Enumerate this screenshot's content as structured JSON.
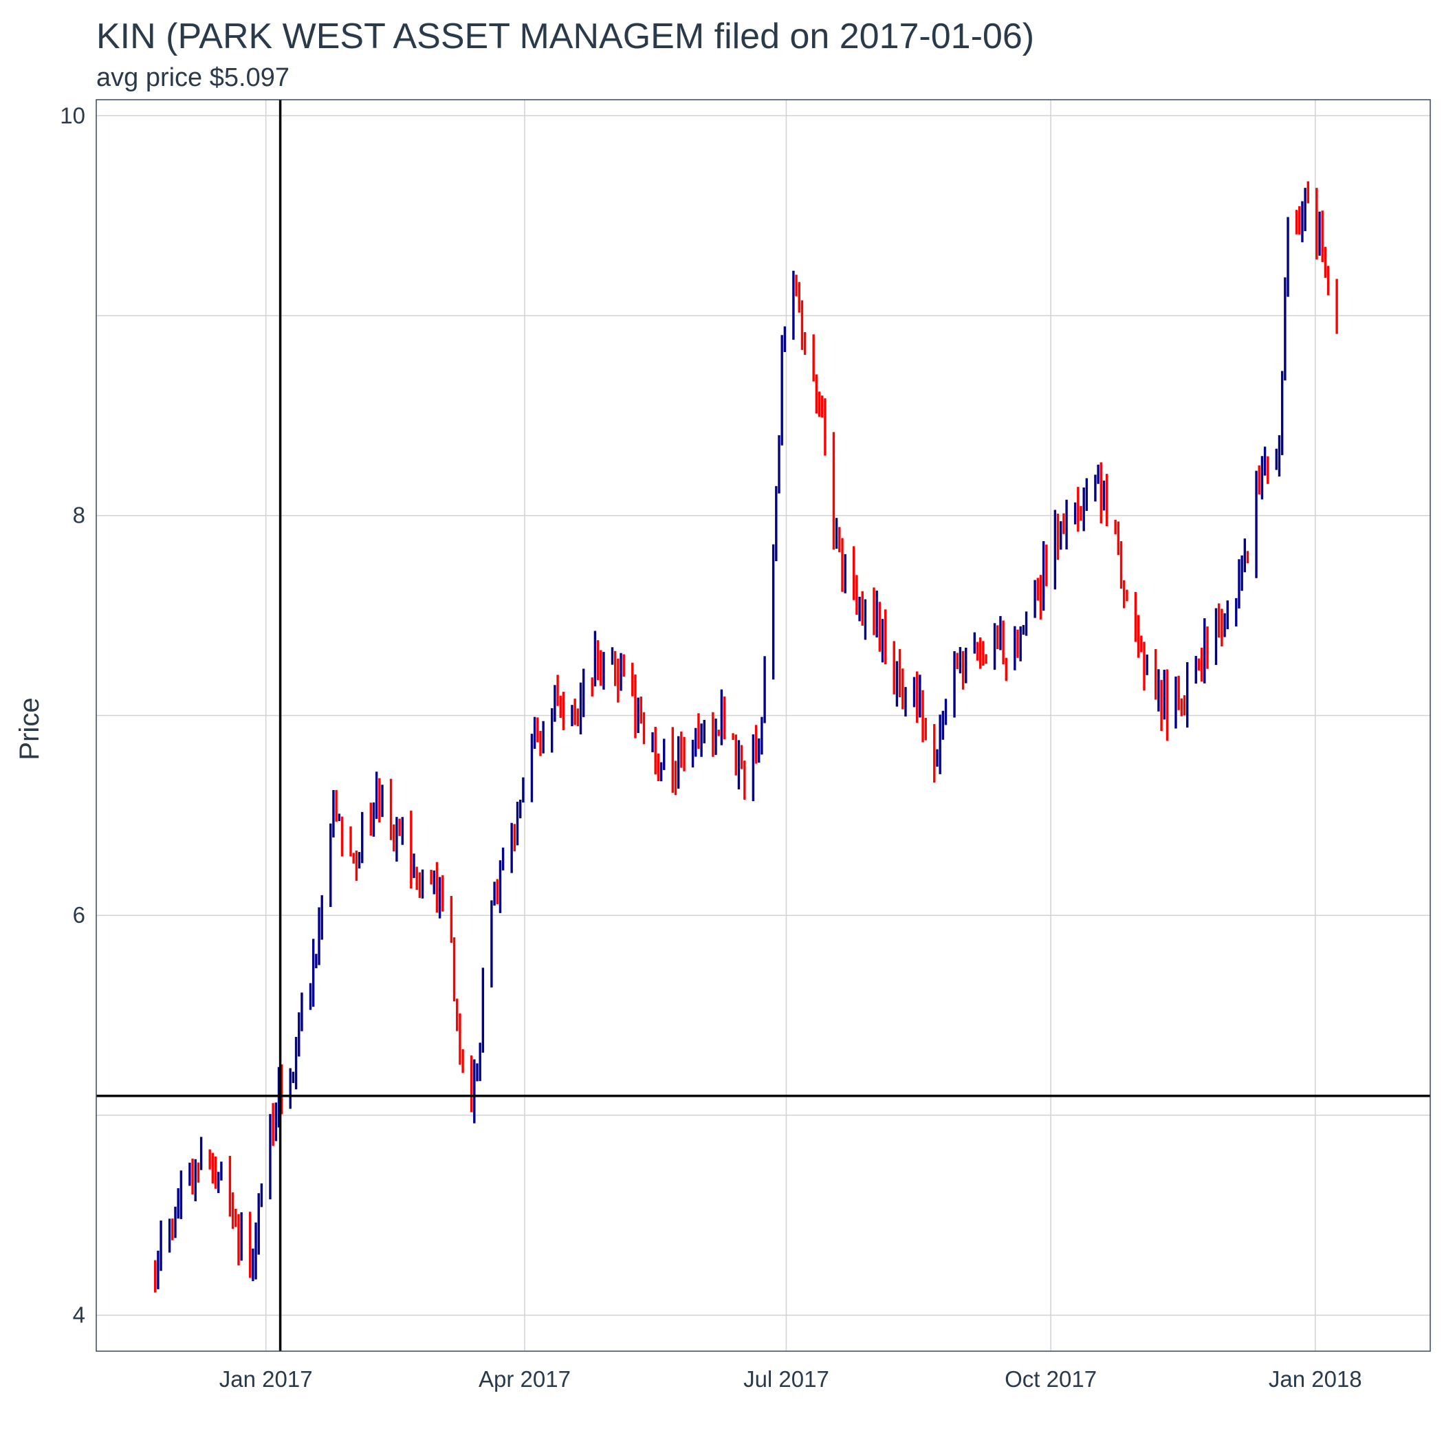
{
  "chart_data": {
    "type": "ohlc",
    "title": "KIN (PARK WEST ASSET MANAGEM filed on 2017-01-06)",
    "subtitle": "avg price $5.097",
    "xlabel": "",
    "ylabel": "Price",
    "ylim": [
      3.82,
      10.08
    ],
    "xlim": [
      "2016-11-03",
      "2018-02-10"
    ],
    "y_ticks": [
      4,
      6,
      8,
      10
    ],
    "x_ticks": [
      {
        "date": "2017-01-01",
        "label": "Jan 2017"
      },
      {
        "date": "2017-04-01",
        "label": "Apr 2017"
      },
      {
        "date": "2017-07-01",
        "label": "Jul 2017"
      },
      {
        "date": "2017-10-01",
        "label": "Oct 2017"
      },
      {
        "date": "2018-01-01",
        "label": "Jan 2018"
      }
    ],
    "grid": true,
    "reference_lines": {
      "filing_date": "2017-01-06",
      "avg_price": 5.097
    },
    "colors": {
      "up": "#00008b",
      "down": "#ff0000",
      "reference": "#000000"
    },
    "waypoints": [
      [
        "2016-11-23",
        4.2
      ],
      [
        "2016-11-28",
        4.4
      ],
      [
        "2016-12-05",
        4.7
      ],
      [
        "2016-12-12",
        4.8
      ],
      [
        "2016-12-19",
        4.5
      ],
      [
        "2016-12-27",
        4.3
      ],
      [
        "2017-01-03",
        5.0
      ],
      [
        "2017-01-10",
        5.3
      ],
      [
        "2017-01-18",
        5.8
      ],
      [
        "2017-01-24",
        6.5
      ],
      [
        "2017-02-01",
        6.3
      ],
      [
        "2017-02-08",
        6.6
      ],
      [
        "2017-02-15",
        6.4
      ],
      [
        "2017-02-22",
        6.2
      ],
      [
        "2017-03-01",
        6.1
      ],
      [
        "2017-03-06",
        5.8
      ],
      [
        "2017-03-09",
        5.2
      ],
      [
        "2017-03-14",
        5.1
      ],
      [
        "2017-03-20",
        6.0
      ],
      [
        "2017-03-27",
        6.4
      ],
      [
        "2017-04-03",
        6.8
      ],
      [
        "2017-04-10",
        7.1
      ],
      [
        "2017-04-18",
        7.0
      ],
      [
        "2017-04-25",
        7.3
      ],
      [
        "2017-05-02",
        7.2
      ],
      [
        "2017-05-09",
        7.0
      ],
      [
        "2017-05-16",
        6.8
      ],
      [
        "2017-05-23",
        6.7
      ],
      [
        "2017-05-30",
        6.9
      ],
      [
        "2017-06-06",
        7.0
      ],
      [
        "2017-06-13",
        6.8
      ],
      [
        "2017-06-16",
        6.6
      ],
      [
        "2017-06-22",
        7.0
      ],
      [
        "2017-06-26",
        7.8
      ],
      [
        "2017-06-29",
        8.8
      ],
      [
        "2017-07-03",
        9.2
      ],
      [
        "2017-07-07",
        8.8
      ],
      [
        "2017-07-12",
        8.6
      ],
      [
        "2017-07-17",
        7.9
      ],
      [
        "2017-07-24",
        7.6
      ],
      [
        "2017-07-31",
        7.5
      ],
      [
        "2017-08-07",
        7.2
      ],
      [
        "2017-08-14",
        7.1
      ],
      [
        "2017-08-21",
        6.8
      ],
      [
        "2017-08-28",
        7.2
      ],
      [
        "2017-09-05",
        7.4
      ],
      [
        "2017-09-12",
        7.3
      ],
      [
        "2017-09-19",
        7.4
      ],
      [
        "2017-09-26",
        7.6
      ],
      [
        "2017-10-03",
        7.9
      ],
      [
        "2017-10-10",
        8.0
      ],
      [
        "2017-10-17",
        8.2
      ],
      [
        "2017-10-24",
        7.8
      ],
      [
        "2017-10-31",
        7.4
      ],
      [
        "2017-11-07",
        7.1
      ],
      [
        "2017-11-14",
        7.0
      ],
      [
        "2017-11-21",
        7.3
      ],
      [
        "2017-11-28",
        7.4
      ],
      [
        "2017-12-05",
        7.6
      ],
      [
        "2017-12-12",
        8.2
      ],
      [
        "2017-12-19",
        8.4
      ],
      [
        "2017-12-22",
        9.5
      ],
      [
        "2017-12-29",
        9.6
      ],
      [
        "2018-01-05",
        9.2
      ],
      [
        "2018-01-08",
        9.0
      ]
    ]
  }
}
